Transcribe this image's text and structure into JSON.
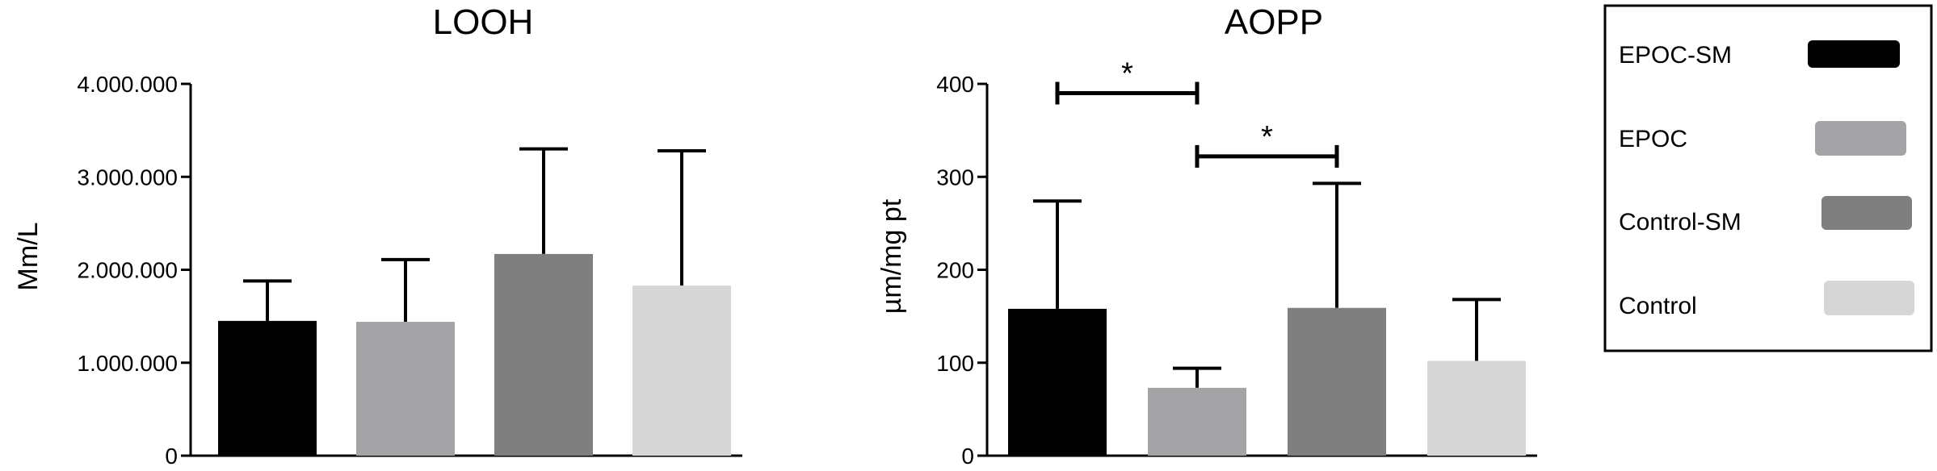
{
  "colors": {
    "EPOC-SM": "#000000",
    "EPOC": "#a4a4a7",
    "Control-SM": "#7f7f7f",
    "Control": "#d6d6d6"
  },
  "chart_data": [
    {
      "type": "bar",
      "title": "LOOH",
      "xlabel": "",
      "ylabel": "Mm/L",
      "ylim": [
        0,
        4000000
      ],
      "ytick_values": [
        0,
        1000000,
        2000000,
        3000000,
        4000000
      ],
      "ytick_labels": [
        "0",
        "1.000.000",
        "2.000.000",
        "3.000.000",
        "4.000.000"
      ],
      "categories": [
        "EPOC-SM",
        "EPOC",
        "Control-SM",
        "Control"
      ],
      "values": [
        1450000,
        1440000,
        2170000,
        1830000
      ],
      "error_upper": [
        1880000,
        2110000,
        3300000,
        3280000
      ],
      "grid": false,
      "significance": []
    },
    {
      "type": "bar",
      "title": "AOPP",
      "xlabel": "",
      "ylabel": "µm/mg pt",
      "ylim": [
        0,
        400
      ],
      "ytick_values": [
        0,
        100,
        200,
        300,
        400
      ],
      "ytick_labels": [
        "0",
        "100",
        "200",
        "300",
        "400"
      ],
      "categories": [
        "EPOC-SM",
        "EPOC",
        "Control-SM",
        "Control"
      ],
      "values": [
        158,
        73,
        159,
        102
      ],
      "error_upper": [
        274,
        94,
        293,
        168
      ],
      "grid": false,
      "significance": [
        {
          "from": "EPOC-SM",
          "to": "EPOC",
          "level": 390,
          "label": "*"
        },
        {
          "from": "EPOC",
          "to": "Control-SM",
          "level": 322,
          "label": "*"
        }
      ]
    }
  ],
  "legend": {
    "placement": "right",
    "entries": [
      "EPOC-SM",
      "EPOC",
      "Control-SM",
      "Control"
    ]
  }
}
